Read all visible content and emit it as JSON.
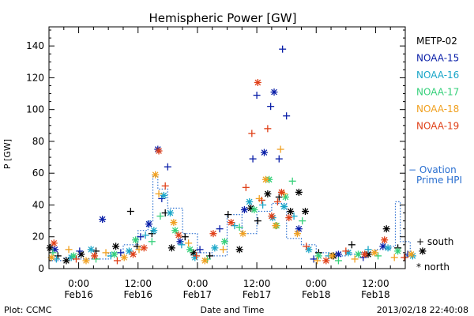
{
  "chart_data": {
    "type": "scatter",
    "title": "Hemispheric Power [GW]",
    "xlabel": "Date and Time",
    "ylabel": "P [GW]",
    "ylim": [
      0,
      152
    ],
    "yticks": [
      0,
      20,
      40,
      60,
      80,
      100,
      120,
      140
    ],
    "xlim_hours": [
      -6,
      66
    ],
    "xticks": [
      {
        "h": 0,
        "top": "0:00",
        "bottom": "Feb16"
      },
      {
        "h": 12,
        "top": "12:00",
        "bottom": "Feb16"
      },
      {
        "h": 24,
        "top": "0:00",
        "bottom": "Feb17"
      },
      {
        "h": 36,
        "top": "12:00",
        "bottom": "Feb17"
      },
      {
        "h": 48,
        "top": "0:00",
        "bottom": "Feb18"
      },
      {
        "h": 60,
        "top": "12:00",
        "bottom": "Feb18"
      }
    ],
    "series": [
      {
        "name": "METP-02",
        "color": "#000000",
        "points": [
          [
            -5.8,
            13,
            "n"
          ],
          [
            -4.2,
            8,
            "s"
          ],
          [
            -2.5,
            5,
            "n"
          ],
          [
            0.5,
            9,
            "n"
          ],
          [
            3.5,
            11,
            "s"
          ],
          [
            7.5,
            14,
            "n"
          ],
          [
            10.5,
            36,
            "s"
          ],
          [
            11.8,
            14,
            "s"
          ],
          [
            14.8,
            22,
            "s"
          ],
          [
            17.5,
            35,
            "s"
          ],
          [
            18.8,
            13,
            "n"
          ],
          [
            21.5,
            20,
            "s"
          ],
          [
            23.2,
            10,
            "n"
          ],
          [
            26.5,
            8,
            "s"
          ],
          [
            30.2,
            34,
            "s"
          ],
          [
            32.5,
            12,
            "n"
          ],
          [
            34.8,
            38,
            "n"
          ],
          [
            36.2,
            30,
            "s"
          ],
          [
            38.2,
            47,
            "n"
          ],
          [
            40.5,
            45,
            "s"
          ],
          [
            42.8,
            36,
            "n"
          ],
          [
            44.5,
            48,
            "n"
          ],
          [
            45.8,
            36,
            "n"
          ],
          [
            48.5,
            10,
            "s"
          ],
          [
            51.5,
            8,
            "n"
          ],
          [
            55.2,
            15,
            "s"
          ],
          [
            58.5,
            9,
            "n"
          ],
          [
            62.2,
            25,
            "n"
          ],
          [
            64.5,
            13,
            "s"
          ],
          [
            69.5,
            11,
            "n"
          ]
        ]
      },
      {
        "name": "NOAA-15",
        "color": "#0a1fa8",
        "points": [
          [
            -4.8,
            12,
            "n"
          ],
          [
            0.2,
            11,
            "s"
          ],
          [
            4.8,
            31,
            "n"
          ],
          [
            8.5,
            10,
            "s"
          ],
          [
            12.5,
            20,
            "s"
          ],
          [
            14.2,
            28,
            "n"
          ],
          [
            16.0,
            75,
            "n"
          ],
          [
            16.8,
            44,
            "s"
          ],
          [
            18.0,
            64,
            "s"
          ],
          [
            20.5,
            17,
            "n"
          ],
          [
            24.5,
            12,
            "s"
          ],
          [
            28.5,
            25,
            "s"
          ],
          [
            33.5,
            37,
            "n"
          ],
          [
            35.2,
            69,
            "s"
          ],
          [
            36.0,
            109,
            "s"
          ],
          [
            37.5,
            73,
            "n"
          ],
          [
            38.8,
            102,
            "s"
          ],
          [
            39.5,
            111,
            "n"
          ],
          [
            40.5,
            69,
            "s"
          ],
          [
            41.2,
            138,
            "s"
          ],
          [
            42.0,
            96,
            "s"
          ],
          [
            44.5,
            25,
            "n"
          ],
          [
            47.5,
            6,
            "s"
          ],
          [
            52.5,
            9,
            "n"
          ],
          [
            57.5,
            7,
            "s"
          ],
          [
            61.5,
            14,
            "n"
          ],
          [
            66.5,
            9,
            "s"
          ]
        ]
      },
      {
        "name": "NOAA-16",
        "color": "#1aa6c8",
        "points": [
          [
            -4.5,
            6,
            "s"
          ],
          [
            -1.5,
            7,
            "n"
          ],
          [
            2.5,
            12,
            "n"
          ],
          [
            6.5,
            8,
            "s"
          ],
          [
            10.2,
            11,
            "n"
          ],
          [
            13.5,
            21,
            "s"
          ],
          [
            15.2,
            24,
            "n"
          ],
          [
            17.2,
            46,
            "n"
          ],
          [
            18.5,
            35,
            "n"
          ],
          [
            20.8,
            15,
            "s"
          ],
          [
            23.5,
            7,
            "n"
          ],
          [
            27.5,
            13,
            "n"
          ],
          [
            31.5,
            27,
            "s"
          ],
          [
            34.5,
            42,
            "n"
          ],
          [
            37.2,
            40,
            "s"
          ],
          [
            39.2,
            32,
            "n"
          ],
          [
            41.5,
            39,
            "n"
          ],
          [
            43.5,
            33,
            "s"
          ],
          [
            46.5,
            12,
            "n"
          ],
          [
            50.5,
            8,
            "s"
          ],
          [
            54.5,
            10,
            "n"
          ],
          [
            58.5,
            12,
            "s"
          ],
          [
            62.5,
            13,
            "n"
          ],
          [
            67.5,
            8,
            "n"
          ]
        ]
      },
      {
        "name": "NOAA-17",
        "color": "#35d07a",
        "points": [
          [
            -5.2,
            10,
            "s"
          ],
          [
            -1.0,
            8,
            "n"
          ],
          [
            3.5,
            6,
            "s"
          ],
          [
            7.2,
            9,
            "n"
          ],
          [
            11.5,
            18,
            "n"
          ],
          [
            14.8,
            17,
            "s"
          ],
          [
            16.5,
            33,
            "s"
          ],
          [
            19.5,
            24,
            "n"
          ],
          [
            22.5,
            12,
            "n"
          ],
          [
            26.0,
            6,
            "s"
          ],
          [
            29.5,
            17,
            "n"
          ],
          [
            32.5,
            26,
            "s"
          ],
          [
            35.5,
            37,
            "n"
          ],
          [
            38.5,
            56,
            "n"
          ],
          [
            40.0,
            27,
            "n"
          ],
          [
            41.8,
            45,
            "n"
          ],
          [
            43.2,
            55,
            "s"
          ],
          [
            45.2,
            30,
            "s"
          ],
          [
            48.5,
            8,
            "n"
          ],
          [
            52.5,
            5,
            "s"
          ],
          [
            56.5,
            9,
            "n"
          ],
          [
            60.5,
            8,
            "s"
          ],
          [
            64.5,
            11,
            "n"
          ]
        ]
      },
      {
        "name": "NOAA-18",
        "color": "#f0a020",
        "points": [
          [
            -5.5,
            7,
            "n"
          ],
          [
            -2.0,
            12,
            "s"
          ],
          [
            1.5,
            5,
            "n"
          ],
          [
            5.5,
            10,
            "s"
          ],
          [
            9.2,
            7,
            "n"
          ],
          [
            12.2,
            12,
            "s"
          ],
          [
            15.5,
            59,
            "n"
          ],
          [
            16.2,
            47,
            "s"
          ],
          [
            19.2,
            29,
            "n"
          ],
          [
            22.2,
            16,
            "s"
          ],
          [
            25.5,
            5,
            "n"
          ],
          [
            29.2,
            12,
            "s"
          ],
          [
            33.2,
            22,
            "n"
          ],
          [
            36.5,
            44,
            "s"
          ],
          [
            37.8,
            56,
            "n"
          ],
          [
            39.8,
            27,
            "n"
          ],
          [
            40.8,
            75,
            "s"
          ],
          [
            41.5,
            47,
            "s"
          ],
          [
            44.2,
            22,
            "n"
          ],
          [
            48.2,
            5,
            "s"
          ],
          [
            51.2,
            8,
            "n"
          ],
          [
            55.8,
            6,
            "s"
          ],
          [
            59.8,
            10,
            "n"
          ],
          [
            63.8,
            7,
            "s"
          ],
          [
            67.2,
            9,
            "n"
          ]
        ]
      },
      {
        "name": "NOAA-19",
        "color": "#e04018",
        "points": [
          [
            -5.0,
            16,
            "n"
          ],
          [
            -0.5,
            6,
            "s"
          ],
          [
            3.2,
            8,
            "n"
          ],
          [
            7.8,
            5,
            "s"
          ],
          [
            11.0,
            9,
            "n"
          ],
          [
            13.2,
            13,
            "n"
          ],
          [
            16.2,
            74,
            "n"
          ],
          [
            17.5,
            52,
            "s"
          ],
          [
            20.2,
            21,
            "n"
          ],
          [
            23.8,
            8,
            "s"
          ],
          [
            27.2,
            22,
            "n"
          ],
          [
            30.8,
            29,
            "n"
          ],
          [
            33.8,
            51,
            "s"
          ],
          [
            35.0,
            85,
            "s"
          ],
          [
            36.2,
            117,
            "n"
          ],
          [
            37.0,
            43,
            "s"
          ],
          [
            38.2,
            88,
            "s"
          ],
          [
            39.0,
            33,
            "n"
          ],
          [
            40.2,
            42,
            "s"
          ],
          [
            41.0,
            48,
            "n"
          ],
          [
            42.5,
            32,
            "n"
          ],
          [
            46.0,
            14,
            "s"
          ],
          [
            50.0,
            5,
            "n"
          ],
          [
            54.0,
            11,
            "s"
          ],
          [
            57.8,
            9,
            "n"
          ],
          [
            61.8,
            18,
            "n"
          ],
          [
            65.8,
            7,
            "s"
          ]
        ]
      }
    ],
    "ovation": {
      "name": "− Ovation Prime HPI",
      "color": "#2a6fd0",
      "steps": [
        [
          -6,
          5
        ],
        [
          -3,
          7
        ],
        [
          0,
          6
        ],
        [
          3,
          6
        ],
        [
          6,
          10
        ],
        [
          9,
          15
        ],
        [
          12,
          24
        ],
        [
          14,
          30
        ],
        [
          15,
          58
        ],
        [
          16,
          50
        ],
        [
          18,
          38
        ],
        [
          21,
          22
        ],
        [
          24,
          10
        ],
        [
          27,
          8
        ],
        [
          30,
          34
        ],
        [
          33,
          22
        ],
        [
          36,
          36
        ],
        [
          39,
          41
        ],
        [
          42,
          19
        ],
        [
          45,
          15
        ],
        [
          48,
          10
        ],
        [
          51,
          8
        ],
        [
          54,
          9
        ],
        [
          57,
          10
        ],
        [
          60,
          12
        ],
        [
          63,
          14
        ],
        [
          64,
          42
        ],
        [
          65,
          17
        ],
        [
          67,
          8
        ]
      ]
    },
    "legend_extra": {
      "south": "+ south",
      "north": "* north"
    }
  },
  "footer": {
    "left": "Plot: CCMC",
    "right": "2013/02/18 22:40:08"
  }
}
